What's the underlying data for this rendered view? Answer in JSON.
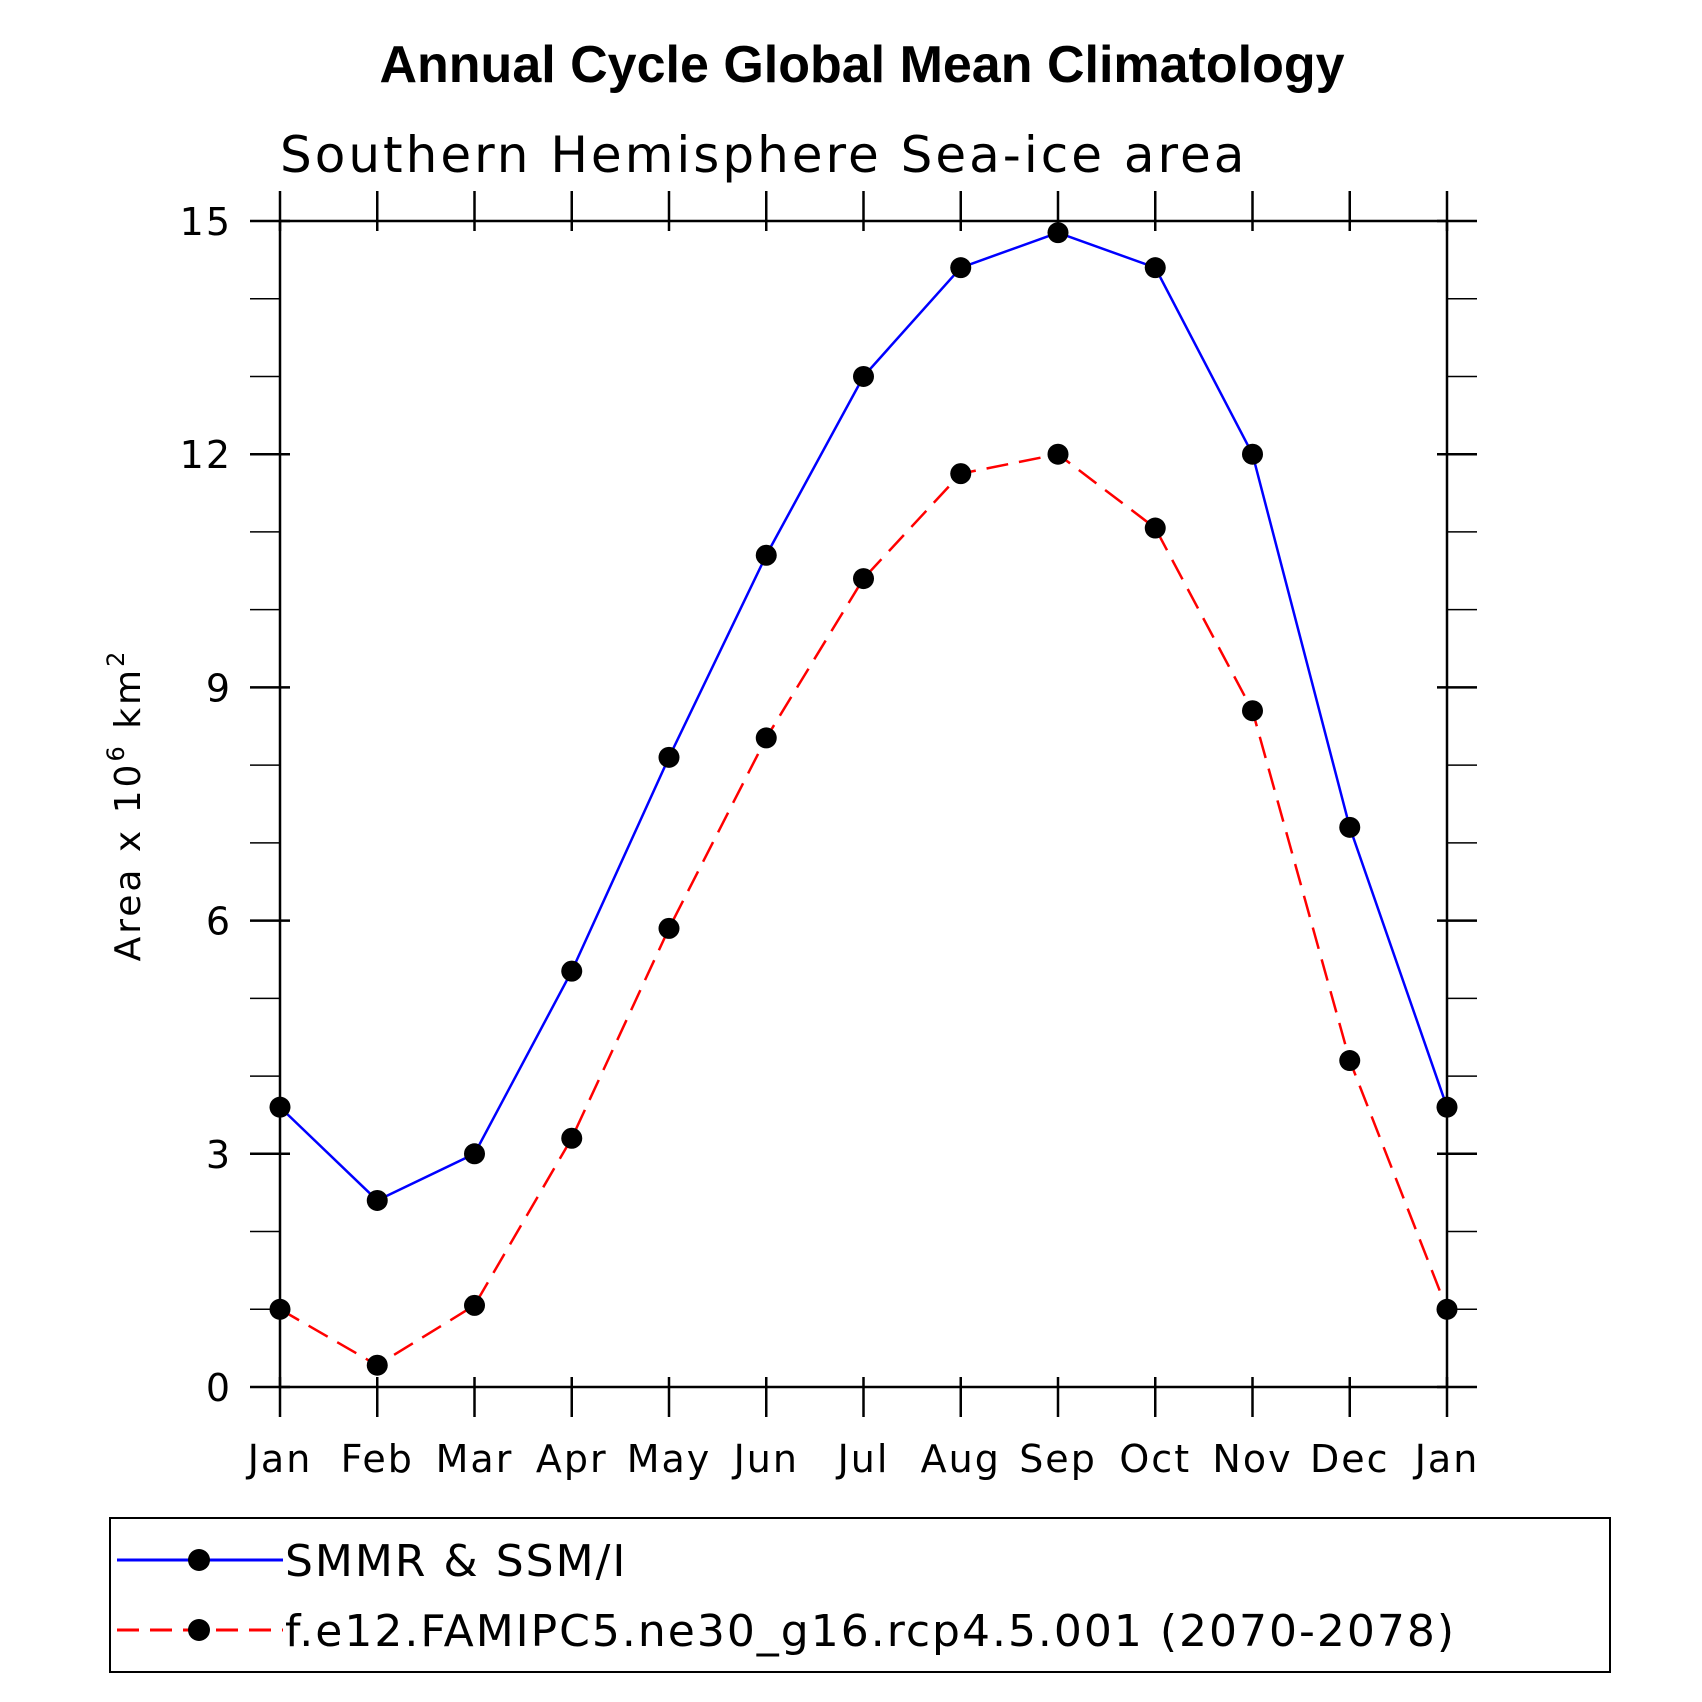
{
  "chart_data": {
    "type": "line",
    "title": "Annual Cycle Global Mean Climatology",
    "subtitle": "Southern Hemisphere Sea-ice area",
    "ylabel": "Area x 10⁶ km²",
    "ylabel_parts": {
      "base": "Area x 10",
      "exp1": "6",
      "unit": " km",
      "exp2": "2"
    },
    "xlabel": "",
    "categories": [
      "Jan",
      "Feb",
      "Mar",
      "Apr",
      "May",
      "Jun",
      "Jul",
      "Aug",
      "Sep",
      "Oct",
      "Nov",
      "Dec",
      "Jan"
    ],
    "ylim": [
      0,
      15
    ],
    "yticks": [
      0,
      3,
      6,
      9,
      12,
      15
    ],
    "yminor_step": 1,
    "series": [
      {
        "name": "SMMR & SSM/I",
        "color": "#0000ff",
        "dash": "solid",
        "values": [
          3.6,
          2.4,
          3.0,
          5.35,
          8.1,
          10.7,
          13.0,
          14.4,
          14.85,
          14.4,
          12.0,
          7.2,
          3.6
        ]
      },
      {
        "name": "f.e12.FAMIPC5.ne30_g16.rcp4.5.001 (2070-2078)",
        "color": "#ff0000",
        "dash": "dashed",
        "values": [
          1.0,
          0.28,
          1.05,
          3.2,
          5.9,
          8.35,
          10.4,
          11.75,
          12.0,
          11.05,
          8.7,
          4.2,
          1.0
        ]
      }
    ],
    "marker_color": "#000000",
    "legend_position": "bottom"
  }
}
